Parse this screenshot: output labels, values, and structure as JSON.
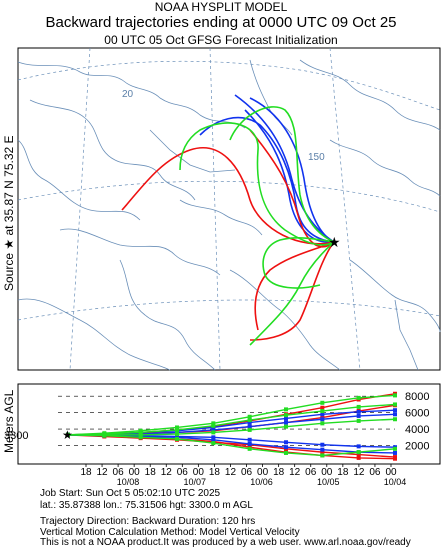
{
  "header": {
    "line1": "NOAA HYSPLIT MODEL",
    "line2": "Backward trajectories ending at 0000 UTC 09 Oct 25",
    "line3": "00 UTC 05 Oct    GFSG  Forecast Initialization"
  },
  "side": {
    "source_label": "Source ★ at   35.87 N   75.32 E",
    "agl_label": "Meters AGL"
  },
  "map": {
    "grid_labels": [
      "20",
      "150"
    ],
    "source_height": "3300"
  },
  "colors": {
    "red": "#ee1111",
    "blue": "#1133ee",
    "green": "#22dd22"
  },
  "chart_data": {
    "type": "line",
    "title": "",
    "ylabel": "Meters AGL",
    "y_ticks": [
      "8000",
      "6000",
      "4000",
      "2000"
    ],
    "x_hour_ticks": [
      "18",
      "12",
      "06",
      "00",
      "18",
      "12",
      "06",
      "00",
      "18",
      "12",
      "06",
      "00",
      "18",
      "12",
      "06",
      "00",
      "18",
      "12",
      "06",
      "00"
    ],
    "x_date_ticks": [
      "10/08",
      "10/07",
      "10/06",
      "10/05",
      "10/04"
    ],
    "start_height": 3300,
    "series": [
      {
        "color": "red",
        "values": [
          3300,
          3400,
          3600,
          3900,
          4300,
          5000,
          5800,
          6600,
          7600,
          8300
        ]
      },
      {
        "color": "red",
        "values": [
          3300,
          3300,
          3500,
          3600,
          3800,
          4300,
          4800,
          5400,
          6200,
          6900
        ]
      },
      {
        "color": "red",
        "values": [
          3300,
          3200,
          3000,
          2800,
          2500,
          1800,
          1200,
          800,
          500,
          400
        ]
      },
      {
        "color": "red",
        "values": [
          3300,
          3100,
          2900,
          2700,
          2400,
          2100,
          1600,
          1200,
          900,
          600
        ]
      },
      {
        "color": "blue",
        "values": [
          3300,
          3400,
          3600,
          3800,
          4200,
          4800,
          5300,
          5800,
          6100,
          6300
        ]
      },
      {
        "color": "blue",
        "values": [
          3300,
          3300,
          3400,
          3600,
          3900,
          4300,
          4800,
          5200,
          5600,
          5800
        ]
      },
      {
        "color": "blue",
        "values": [
          3300,
          3200,
          3100,
          3000,
          2700,
          2200,
          1800,
          1500,
          1200,
          1100
        ]
      },
      {
        "color": "blue",
        "values": [
          3300,
          3300,
          3200,
          3100,
          3000,
          2700,
          2400,
          2100,
          1900,
          1800
        ]
      },
      {
        "color": "green",
        "values": [
          3300,
          3500,
          3800,
          4200,
          4700,
          5500,
          6400,
          7200,
          7800,
          8100
        ]
      },
      {
        "color": "green",
        "values": [
          3300,
          3400,
          3600,
          3900,
          4400,
          5100,
          5700,
          6200,
          6700,
          7000
        ]
      },
      {
        "color": "green",
        "values": [
          3300,
          3200,
          3000,
          2800,
          2300,
          1600,
          1100,
          800,
          1200,
          1600
        ]
      },
      {
        "color": "green",
        "values": [
          3300,
          3300,
          3300,
          3400,
          3600,
          3900,
          4300,
          4700,
          5000,
          5200
        ]
      }
    ]
  },
  "info": {
    "job_start": "Job Start: Sun Oct  5 05:02:10 UTC 2025",
    "coords": "lat.: 35.87388   lon.: 75.31506   hgt: 3300.0 m AGL",
    "direction": "Trajectory Direction: Backward        Duration: 120 hrs",
    "vertical": "Vertical Motion Calculation Method: Model Vertical Velocity",
    "disclaimer": "This is not a NOAA product.It was produced by a web user. www.arl.noaa.gov/ready"
  }
}
